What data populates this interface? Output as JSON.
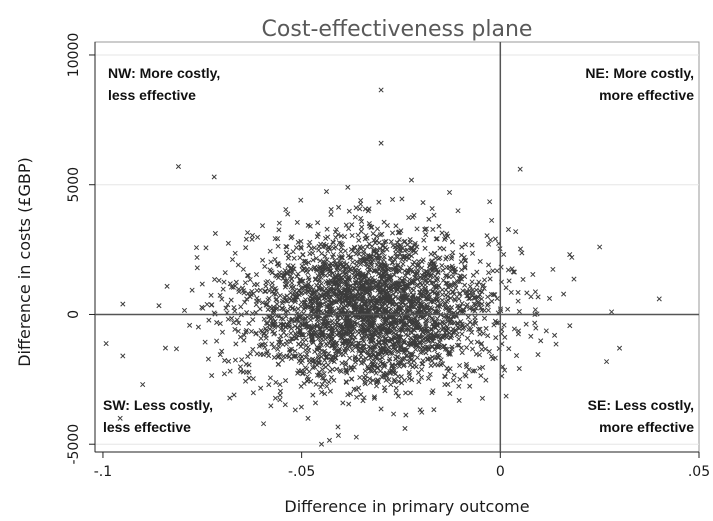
{
  "chart_data": {
    "type": "scatter",
    "title": "Cost-effectiveness plane",
    "xlabel": "Difference  in primary outcome",
    "ylabel": "Difference  in costs (£GBP)",
    "xlim": [
      -0.102,
      0.05
    ],
    "ylim": [
      -5300,
      10500
    ],
    "x_ticks": [
      -0.1,
      -0.05,
      0,
      0.05
    ],
    "x_tick_labels": [
      "-.1",
      "-.05",
      "0",
      ".05"
    ],
    "y_ticks": [
      -5000,
      0,
      5000,
      10000
    ],
    "y_tick_labels": [
      "-5000",
      "0",
      "5000",
      "10000"
    ],
    "grid": "horizontal",
    "reference_lines": {
      "x": 0,
      "y": 0
    },
    "marker": "x",
    "marker_color": "#3c3c3c",
    "quadrants": {
      "nw": [
        "NW: More costly,",
        "less effective"
      ],
      "ne": [
        "NE: More costly,",
        "more effective"
      ],
      "sw": [
        "SW: Less costly,",
        "less effective"
      ],
      "se": [
        "SE: Less costly,",
        "more effective"
      ]
    },
    "cloud": {
      "n_points": 3000,
      "x_mean": -0.033,
      "x_sd": 0.016,
      "y_mean": 200,
      "y_sd": 1500
    },
    "points": [
      [
        -0.03,
        8650
      ],
      [
        -0.03,
        6600
      ],
      [
        -0.081,
        5700
      ],
      [
        0.04,
        600
      ],
      [
        -0.095,
        400
      ],
      [
        -0.095,
        -1600
      ],
      [
        -0.045,
        -5000
      ],
      [
        -0.043,
        -4850
      ],
      [
        0.03,
        -1300
      ],
      [
        0.025,
        2600
      ],
      [
        0.018,
        2200
      ],
      [
        -0.072,
        5300
      ],
      [
        0.005,
        5600
      ],
      [
        -0.067,
        -3100
      ],
      [
        -0.09,
        -2700
      ],
      [
        0.028,
        100
      ]
    ]
  }
}
